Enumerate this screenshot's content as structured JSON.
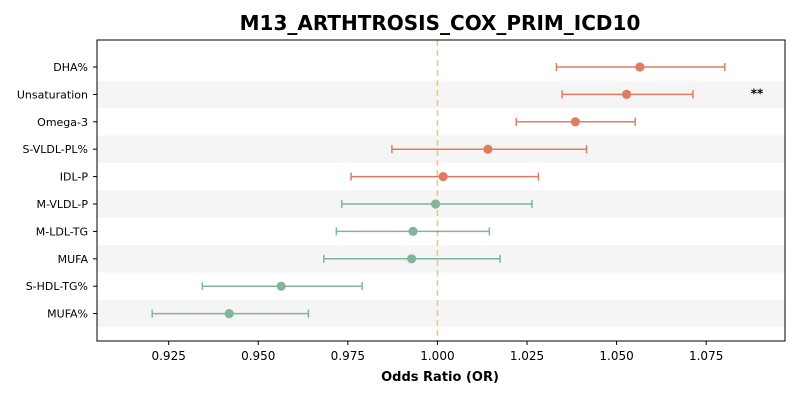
{
  "chart_data": {
    "type": "scatter",
    "title": "M13_ARTHTROSIS_COX_PRIM_ICD10",
    "xlabel": "Odds Ratio (OR)",
    "ylabel": "",
    "xlim": [
      0.905,
      1.097
    ],
    "xticks": [
      0.925,
      0.95,
      0.975,
      1.0,
      1.025,
      1.05,
      1.075
    ],
    "xtick_labels": [
      "0.925",
      "0.950",
      "0.975",
      "1.000",
      "1.025",
      "1.050",
      "1.075"
    ],
    "reference_line": 1.0,
    "grid": false,
    "alternating_row_shading": true,
    "colors": {
      "positive": "#e07b5f",
      "negative": "#82b59a",
      "reference": "#f2c77a",
      "stripe": "#f5f5f5"
    },
    "points": [
      {
        "label": "DHA%",
        "or": 1.0565,
        "lower": 1.0332,
        "upper": 1.0802,
        "direction": "positive",
        "significance": ""
      },
      {
        "label": "Unsaturation",
        "or": 1.0528,
        "lower": 1.0348,
        "upper": 1.0713,
        "direction": "positive",
        "significance": "**"
      },
      {
        "label": "Omega-3",
        "or": 1.0385,
        "lower": 1.022,
        "upper": 1.0552,
        "direction": "positive",
        "significance": ""
      },
      {
        "label": "S-VLDL-PL%",
        "or": 1.0141,
        "lower": 0.9873,
        "upper": 1.0416,
        "direction": "positive",
        "significance": ""
      },
      {
        "label": "IDL-P",
        "or": 1.0016,
        "lower": 0.9759,
        "upper": 1.0282,
        "direction": "positive",
        "significance": ""
      },
      {
        "label": "M-VLDL-P",
        "or": 0.9995,
        "lower": 0.9733,
        "upper": 1.0264,
        "direction": "negative",
        "significance": ""
      },
      {
        "label": "M-LDL-TG",
        "or": 0.9932,
        "lower": 0.9718,
        "upper": 1.0145,
        "direction": "negative",
        "significance": ""
      },
      {
        "label": "MUFA",
        "or": 0.9928,
        "lower": 0.9683,
        "upper": 1.0175,
        "direction": "negative",
        "significance": ""
      },
      {
        "label": "S-HDL-TG%",
        "or": 0.9564,
        "lower": 0.9344,
        "upper": 0.979,
        "direction": "negative",
        "significance": ""
      },
      {
        "label": "MUFA%",
        "or": 0.9419,
        "lower": 0.9204,
        "upper": 0.964,
        "direction": "negative",
        "significance": ""
      }
    ]
  }
}
